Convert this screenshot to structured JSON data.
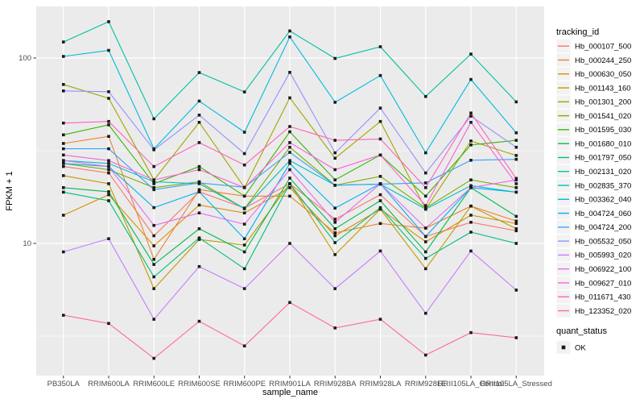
{
  "figure": {
    "background": "#FFFFFF",
    "panel_background": "#EBEBEB",
    "gridline_color": "#FFFFFF",
    "tick_color": "#333333",
    "tick_label_color": "#4D4D4D",
    "title_color": "#000000",
    "point_color": "#1A1A1A",
    "legend_key_fill": "#F2F2F2"
  },
  "chart_data": {
    "type": "line",
    "title": "",
    "xlabel": "sample_name",
    "ylabel": "FPKM + 1",
    "y_scale": "log10",
    "ylim": [
      1.94,
      190
    ],
    "y_tick_labels": [
      "100",
      "10"
    ],
    "y_tick_values": [
      100,
      10
    ],
    "y_minor_gridline_values": [
      31.62,
      3.162
    ],
    "grid": true,
    "marker": "square",
    "legend_position": "right",
    "legend_title": "tracking_id",
    "quant_status_title": "quant_status",
    "quant_status_label": "OK",
    "categories": [
      "PB350LA",
      "RRIM600LA",
      "RRIM600LE",
      "RRIM600SE",
      "RRIM600PE",
      "RRIM901LA",
      "RRIM928BA",
      "RRIM928LA",
      "RRIM928LE",
      "RRII105LA_Control",
      "RRII105LA_Stressed"
    ],
    "series": [
      {
        "name": "Hb_000107_500",
        "color": "#F8766D",
        "values": [
          26,
          24,
          11,
          19,
          15.5,
          21,
          13.5,
          18.3,
          10.9,
          13,
          11.7
        ]
      },
      {
        "name": "Hb_000244_250",
        "color": "#EA8331",
        "values": [
          34.6,
          37.8,
          8.2,
          19.5,
          18,
          18,
          11.4,
          12.8,
          12.1,
          15.9,
          13.2
        ]
      },
      {
        "name": "Hb_000630_050",
        "color": "#D89000",
        "values": [
          14.2,
          18.3,
          9.7,
          16.1,
          14.6,
          20,
          11,
          15.3,
          10.2,
          14.2,
          12.8
        ]
      },
      {
        "name": "Hb_001143_160",
        "color": "#C09B00",
        "values": [
          23.2,
          21,
          5.7,
          10.5,
          9.8,
          21,
          8.7,
          15.3,
          7.3,
          15.9,
          12
        ]
      },
      {
        "name": "Hb_001301_200",
        "color": "#A3A500",
        "values": [
          72,
          60.6,
          22,
          45,
          20,
          61,
          28.8,
          45.5,
          15.3,
          35.7,
          29.8
        ]
      },
      {
        "name": "Hb_001541_020",
        "color": "#7CAE00",
        "values": [
          27,
          25,
          20,
          21.5,
          15.4,
          33,
          20.6,
          23,
          15.5,
          22,
          20
        ]
      },
      {
        "name": "Hb_001595_030",
        "color": "#39B600",
        "values": [
          38.5,
          43.6,
          21,
          26,
          18,
          40,
          22,
          30,
          18,
          34,
          36
        ]
      },
      {
        "name": "Hb_001680_010",
        "color": "#00BB4E",
        "values": [
          20,
          19,
          7.7,
          12,
          9,
          22.5,
          12,
          17,
          9,
          20,
          14
        ]
      },
      {
        "name": "Hb_001797_050",
        "color": "#00BF7D",
        "values": [
          18.9,
          17,
          6.6,
          10.7,
          7.3,
          21,
          10.1,
          15.6,
          8.3,
          11.5,
          10
        ]
      },
      {
        "name": "Hb_002131_020",
        "color": "#00C1A3",
        "values": [
          122,
          157,
          47,
          83.5,
          65.6,
          140,
          99.5,
          115,
          62,
          105,
          58
        ]
      },
      {
        "name": "Hb_002835_370",
        "color": "#00BFC4",
        "values": [
          28,
          27,
          21.5,
          21,
          15.4,
          28,
          20.6,
          20.9,
          15.3,
          20.5,
          18.9
        ]
      },
      {
        "name": "Hb_003362_040",
        "color": "#00BAE0",
        "values": [
          102,
          110,
          32.4,
          58.6,
          39.8,
          130,
          57.7,
          80.5,
          30.8,
          76.6,
          39.5
        ]
      },
      {
        "name": "Hb_004724_060",
        "color": "#00B0F6",
        "values": [
          27,
          26,
          15.6,
          19,
          10.6,
          27,
          15.5,
          21,
          10.9,
          20,
          18.9
        ]
      },
      {
        "name": "Hb_004724_200",
        "color": "#35A2FF",
        "values": [
          32.4,
          32.4,
          19.5,
          21.2,
          20.1,
          31,
          20.6,
          20.9,
          21.2,
          28.1,
          28.4
        ]
      },
      {
        "name": "Hb_005532_050",
        "color": "#9590FF",
        "values": [
          66.5,
          65.8,
          32,
          49.2,
          30.5,
          83.7,
          30.8,
          53.7,
          24,
          48.6,
          33
        ]
      },
      {
        "name": "Hb_005993_020",
        "color": "#C77CFF",
        "values": [
          9,
          10.6,
          3.9,
          7.5,
          5.7,
          10,
          5.7,
          9.1,
          4.2,
          9.1,
          5.6
        ]
      },
      {
        "name": "Hb_006922_100",
        "color": "#E76BF3",
        "values": [
          28,
          26,
          12.5,
          14.6,
          12.7,
          25,
          13,
          21,
          12.1,
          20,
          22
        ]
      },
      {
        "name": "Hb_009627_010",
        "color": "#FA62DB",
        "values": [
          30,
          28,
          22,
          25,
          20,
          35,
          25,
          30,
          16,
          45,
          21
        ]
      },
      {
        "name": "Hb_011671_430",
        "color": "#FF62BC",
        "values": [
          44.6,
          45.5,
          26,
          35,
          26.5,
          42.7,
          36,
          36.6,
          20,
          50.5,
          22.4
        ]
      },
      {
        "name": "Hb_123352_020",
        "color": "#FF6A98",
        "values": [
          4.1,
          3.7,
          2.4,
          3.8,
          2.8,
          4.8,
          3.5,
          3.9,
          2.5,
          3.3,
          3.1
        ]
      }
    ]
  }
}
